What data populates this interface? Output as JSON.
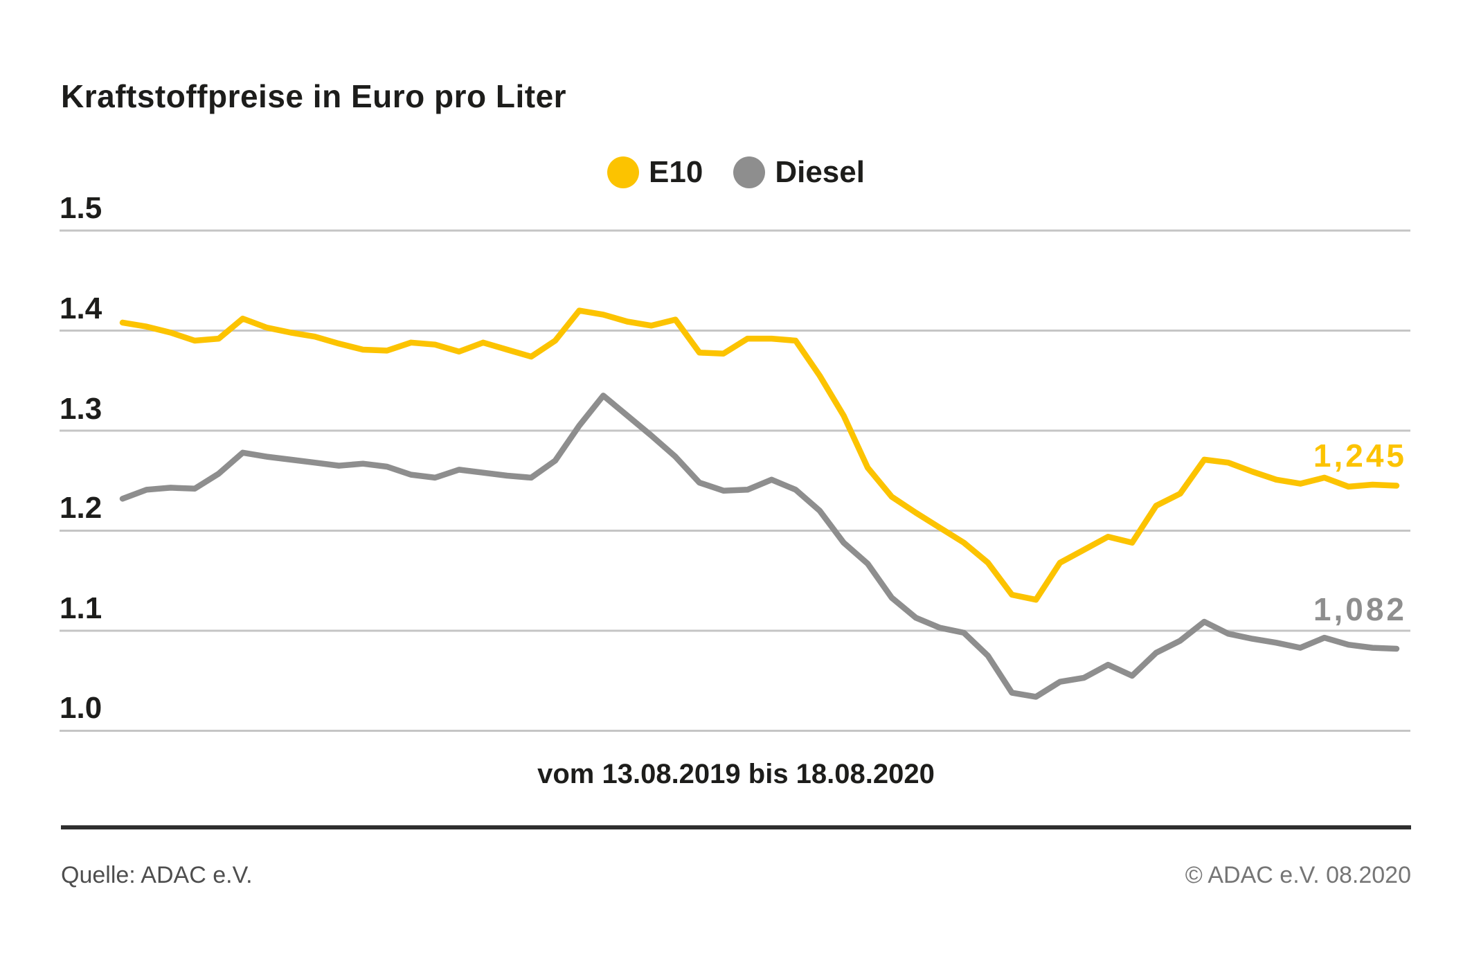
{
  "title": "Kraftstoffpreise in Euro pro Liter",
  "colors": {
    "e10": "#fcc300",
    "diesel": "#8e8e8e",
    "gridline": "#c5c5c5",
    "text": "#1d1d1b"
  },
  "chart_data": {
    "type": "line",
    "title": "Kraftstoffpreise in Euro pro Liter",
    "x_label": "vom 13.08.2019 bis 18.08.2020",
    "x_start": "13.08.2019",
    "x_end": "18.08.2020",
    "x_interval": "weekly",
    "ylabel": "Euro pro Liter",
    "ylim": [
      1.0,
      1.5
    ],
    "y_ticks": [
      "1.5",
      "1.4",
      "1.3",
      "1.2",
      "1.1",
      "1.0"
    ],
    "grid": "horizontal",
    "legend_position": "top-center",
    "series": [
      {
        "name": "E10",
        "color": "#fcc300",
        "end_label": "1,245",
        "end_value": 1.245,
        "values": [
          1.408,
          1.404,
          1.398,
          1.39,
          1.392,
          1.412,
          1.403,
          1.398,
          1.394,
          1.387,
          1.381,
          1.38,
          1.388,
          1.386,
          1.379,
          1.388,
          1.381,
          1.374,
          1.39,
          1.42,
          1.416,
          1.409,
          1.405,
          1.411,
          1.378,
          1.377,
          1.392,
          1.392,
          1.39,
          1.355,
          1.315,
          1.263,
          1.234,
          1.218,
          1.203,
          1.188,
          1.168,
          1.136,
          1.131,
          1.168,
          1.181,
          1.194,
          1.188,
          1.225,
          1.237,
          1.271,
          1.268,
          1.259,
          1.251,
          1.247,
          1.253,
          1.244,
          1.246,
          1.245
        ]
      },
      {
        "name": "Diesel",
        "color": "#8e8e8e",
        "end_label": "1,082",
        "end_value": 1.082,
        "values": [
          1.232,
          1.241,
          1.243,
          1.242,
          1.257,
          1.278,
          1.274,
          1.271,
          1.268,
          1.265,
          1.267,
          1.264,
          1.256,
          1.253,
          1.261,
          1.258,
          1.255,
          1.253,
          1.27,
          1.305,
          1.335,
          1.315,
          1.295,
          1.274,
          1.248,
          1.24,
          1.241,
          1.251,
          1.241,
          1.22,
          1.188,
          1.167,
          1.133,
          1.113,
          1.103,
          1.098,
          1.075,
          1.038,
          1.034,
          1.049,
          1.053,
          1.066,
          1.055,
          1.078,
          1.09,
          1.109,
          1.097,
          1.092,
          1.088,
          1.083,
          1.093,
          1.086,
          1.083,
          1.082
        ]
      }
    ]
  },
  "footer": {
    "source": "Quelle: ADAC e.V.",
    "copyright": "© ADAC e.V. 08.2020"
  }
}
